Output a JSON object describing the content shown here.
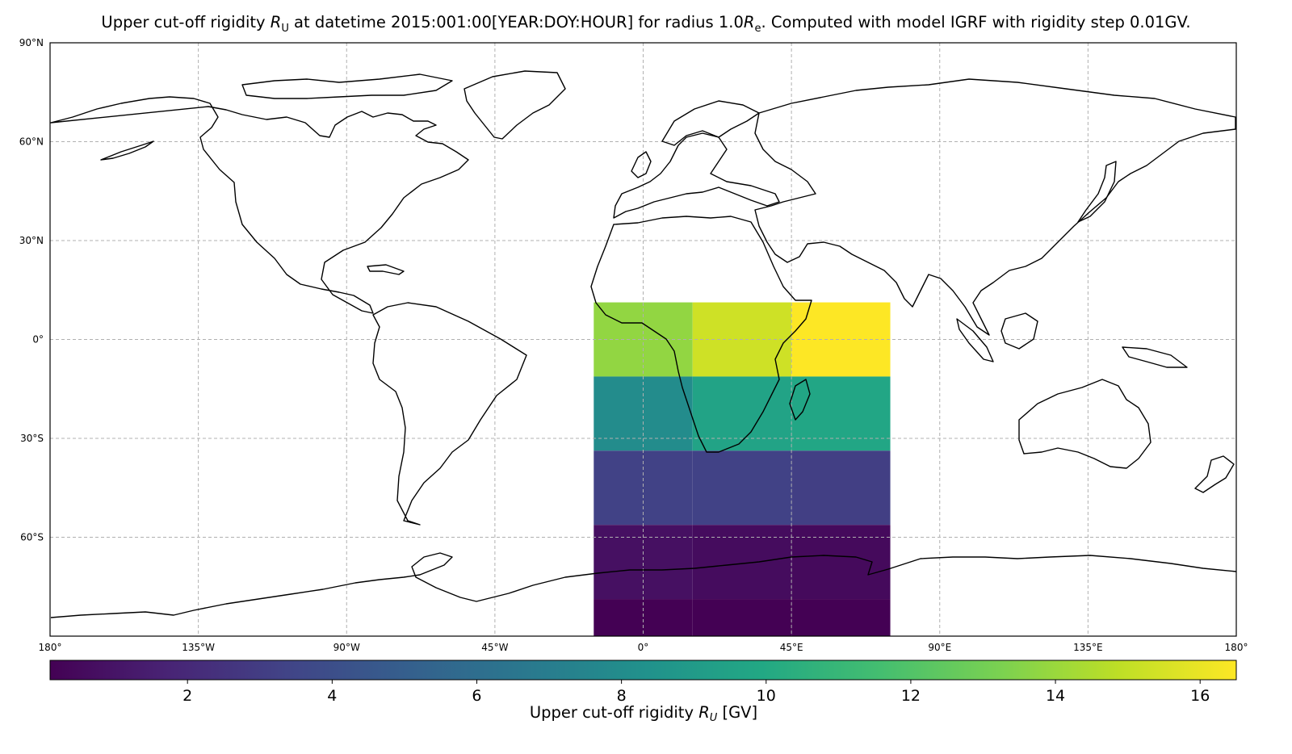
{
  "title": {
    "prefix": "Upper cut-off rigidity ",
    "sym": "R",
    "sub": "U",
    "mid": " at datetime 2015:001:00[YEAR:DOY:HOUR] for radius 1.0",
    "sym2": "R",
    "sub2": "e",
    "suffix": ". Computed with model IGRF with rigidity step 0.01GV."
  },
  "colorbar": {
    "label_prefix": "Upper cut-off rigidity ",
    "label_sym": "R",
    "label_sub": "U",
    "label_suffix": " [GV]",
    "min": 0.1,
    "max": 16.5,
    "ticks": [
      2,
      4,
      6,
      8,
      10,
      12,
      14,
      16
    ],
    "tick_labels": [
      "2",
      "4",
      "6",
      "8",
      "10",
      "12",
      "14",
      "16"
    ],
    "colormap": "viridis"
  },
  "chart_data": {
    "type": "heatmap",
    "projection": "PlateCarree",
    "xlim": [
      -180,
      180
    ],
    "ylim": [
      -90,
      90
    ],
    "grid": true,
    "x_ticks": [
      -180,
      -135,
      -90,
      -45,
      0,
      45,
      90,
      135,
      180
    ],
    "x_tick_labels": [
      "180°",
      "135°W",
      "90°W",
      "45°W",
      "0°",
      "45°E",
      "90°E",
      "135°E",
      "180°"
    ],
    "y_ticks": [
      90,
      60,
      30,
      0,
      -30,
      -60
    ],
    "y_tick_labels": [
      "90°N",
      "60°N",
      "30°N",
      "0°",
      "30°S",
      "60°S"
    ],
    "cell_lon_edges": [
      -15,
      15,
      45,
      75
    ],
    "cell_lat_edges": [
      11.25,
      -11.25,
      -33.75,
      -56.25,
      -78.75,
      -90
    ],
    "values": [
      [
        13.8,
        15.3,
        16.5
      ],
      [
        8.0,
        9.6,
        9.8
      ],
      [
        3.3,
        3.3,
        3.1
      ],
      [
        0.8,
        0.6,
        0.5
      ],
      [
        0.1,
        0.1,
        0.1
      ]
    ]
  }
}
